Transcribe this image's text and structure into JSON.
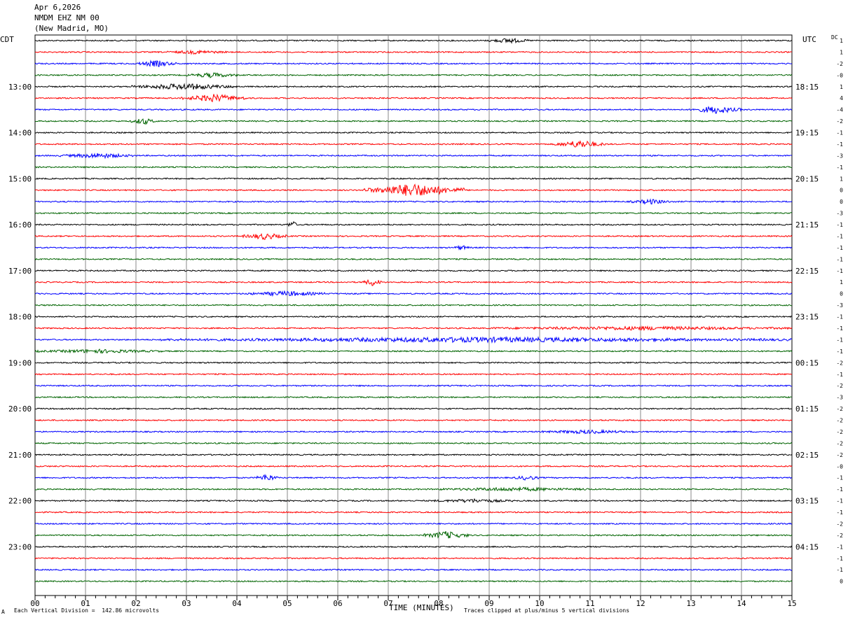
{
  "header": {
    "date": "Apr 6,2026",
    "station": "NMDM EHZ NM 00",
    "location": "(New Madrid, MO)"
  },
  "left_tz": "CDT",
  "right_tz": "UTC",
  "dc_label": "DC",
  "footer": {
    "scale": "Each Vertical Division =  142.86 microvolts",
    "clip_note": "Traces clipped at plus/minus 5 vertical divisions",
    "corner_mark": "A"
  },
  "colors": {
    "cycle": [
      "#000000",
      "#ff0000",
      "#0000ff",
      "#006400"
    ],
    "grid": "#888888"
  },
  "chart_data": {
    "type": "line",
    "title": "",
    "xlabel": "TIME (MINUTES)",
    "x_ticks": [
      "00",
      "01",
      "02",
      "03",
      "04",
      "05",
      "06",
      "07",
      "08",
      "09",
      "10",
      "11",
      "12",
      "13",
      "14",
      "15"
    ],
    "xlim": [
      0,
      15
    ],
    "left_hour_labels": [
      "13:00",
      "14:00",
      "15:00",
      "16:00",
      "17:00",
      "18:00",
      "19:00",
      "20:00",
      "21:00",
      "22:00",
      "23:00"
    ],
    "right_hour_labels": [
      "18:15",
      "19:15",
      "20:15",
      "21:15",
      "22:15",
      "23:15",
      "00:15",
      "01:15",
      "02:15",
      "03:15",
      "04:15"
    ],
    "hour_label_rows": [
      4,
      8,
      12,
      16,
      20,
      24,
      28,
      32,
      36,
      40,
      44
    ],
    "dc_offsets": [
      "1",
      "1",
      "-2",
      "-0",
      "1",
      "4",
      "-4",
      "-2",
      "-1",
      "-1",
      "-3",
      "-1",
      "1",
      "0",
      "0",
      "-3",
      "-1",
      "-1",
      "-1",
      "-1",
      "-1",
      "1",
      "0",
      "-3",
      "-1",
      "-1",
      "-1",
      "-1",
      "-2",
      "-1",
      "-2",
      "-3",
      "-2",
      "-2",
      "-2",
      "-2",
      "-2",
      "-0",
      "-1",
      "-1",
      "-1",
      "-1",
      "-2",
      "-2",
      "-1",
      "-1",
      "-1",
      "0"
    ],
    "trace_count": 48,
    "events": [
      {
        "row": 0,
        "start": 9.0,
        "end": 9.8,
        "amp": 3
      },
      {
        "row": 1,
        "start": 2.6,
        "end": 3.8,
        "amp": 2
      },
      {
        "row": 2,
        "start": 2.0,
        "end": 2.8,
        "amp": 4
      },
      {
        "row": 3,
        "start": 3.0,
        "end": 4.0,
        "amp": 3
      },
      {
        "row": 4,
        "start": 1.9,
        "end": 4.0,
        "amp": 4
      },
      {
        "row": 5,
        "start": 2.9,
        "end": 4.2,
        "amp": 5
      },
      {
        "row": 6,
        "start": 13.0,
        "end": 14.0,
        "amp": 5
      },
      {
        "row": 7,
        "start": 1.9,
        "end": 2.4,
        "amp": 4
      },
      {
        "row": 9,
        "start": 10.3,
        "end": 11.3,
        "amp": 5
      },
      {
        "row": 10,
        "start": 0.5,
        "end": 2.0,
        "amp": 3
      },
      {
        "row": 13,
        "start": 6.5,
        "end": 8.5,
        "amp": 9
      },
      {
        "row": 14,
        "start": 11.8,
        "end": 12.6,
        "amp": 3
      },
      {
        "row": 16,
        "start": 5.0,
        "end": 5.2,
        "amp": 5
      },
      {
        "row": 17,
        "start": 4.1,
        "end": 5.0,
        "amp": 4
      },
      {
        "row": 18,
        "start": 8.3,
        "end": 8.6,
        "amp": 3
      },
      {
        "row": 21,
        "start": 6.5,
        "end": 6.9,
        "amp": 5
      },
      {
        "row": 22,
        "start": 4.2,
        "end": 5.8,
        "amp": 3
      },
      {
        "row": 25,
        "start": 9.0,
        "end": 15.0,
        "amp": 2
      },
      {
        "row": 26,
        "start": 2.5,
        "end": 15.0,
        "amp": 3
      },
      {
        "row": 27,
        "start": 0.0,
        "end": 2.5,
        "amp": 2
      },
      {
        "row": 34,
        "start": 10.0,
        "end": 11.9,
        "amp": 2
      },
      {
        "row": 38,
        "start": 4.4,
        "end": 4.8,
        "amp": 5
      },
      {
        "row": 38,
        "start": 9.5,
        "end": 10.0,
        "amp": 3
      },
      {
        "row": 39,
        "start": 8.0,
        "end": 11.0,
        "amp": 2
      },
      {
        "row": 40,
        "start": 7.9,
        "end": 9.5,
        "amp": 2
      },
      {
        "row": 43,
        "start": 7.7,
        "end": 8.6,
        "amp": 5
      }
    ]
  }
}
